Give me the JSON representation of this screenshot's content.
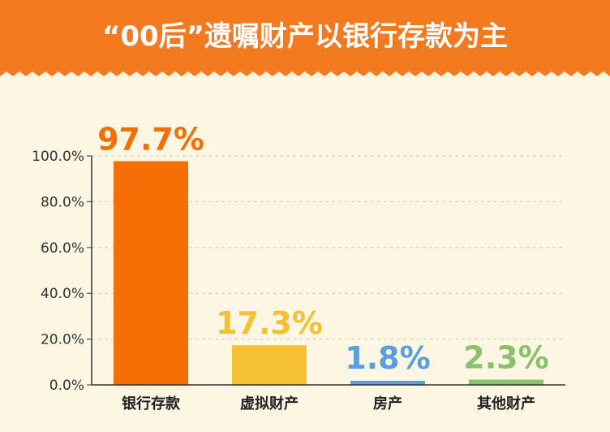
{
  "title": "“00后”遗嘱财产以银行存款为主",
  "colors": {
    "header": "#f47a20",
    "background": "#fcf6e3",
    "axis": "#333333",
    "grid": "#cccccc"
  },
  "chart_data": {
    "type": "bar",
    "title": "“00后”遗嘱财产以银行存款为主",
    "categories": [
      "银行存款",
      "虚拟财产",
      "房产",
      "其他财产"
    ],
    "values": [
      97.7,
      17.3,
      1.8,
      2.3
    ],
    "value_labels": [
      "97.7%",
      "17.3%",
      "1.8%",
      "2.3%"
    ],
    "bar_colors": [
      "#f56f06",
      "#f5c032",
      "#5b9ee0",
      "#8bc06e"
    ],
    "ylim": [
      0,
      100
    ],
    "yticks": [
      "0.0%",
      "20.0%",
      "40.0%",
      "60.0%",
      "80.0%",
      "100.0%"
    ],
    "ytick_values": [
      0,
      20,
      40,
      60,
      80,
      100
    ],
    "grid": true,
    "xlabel": "",
    "ylabel": ""
  }
}
